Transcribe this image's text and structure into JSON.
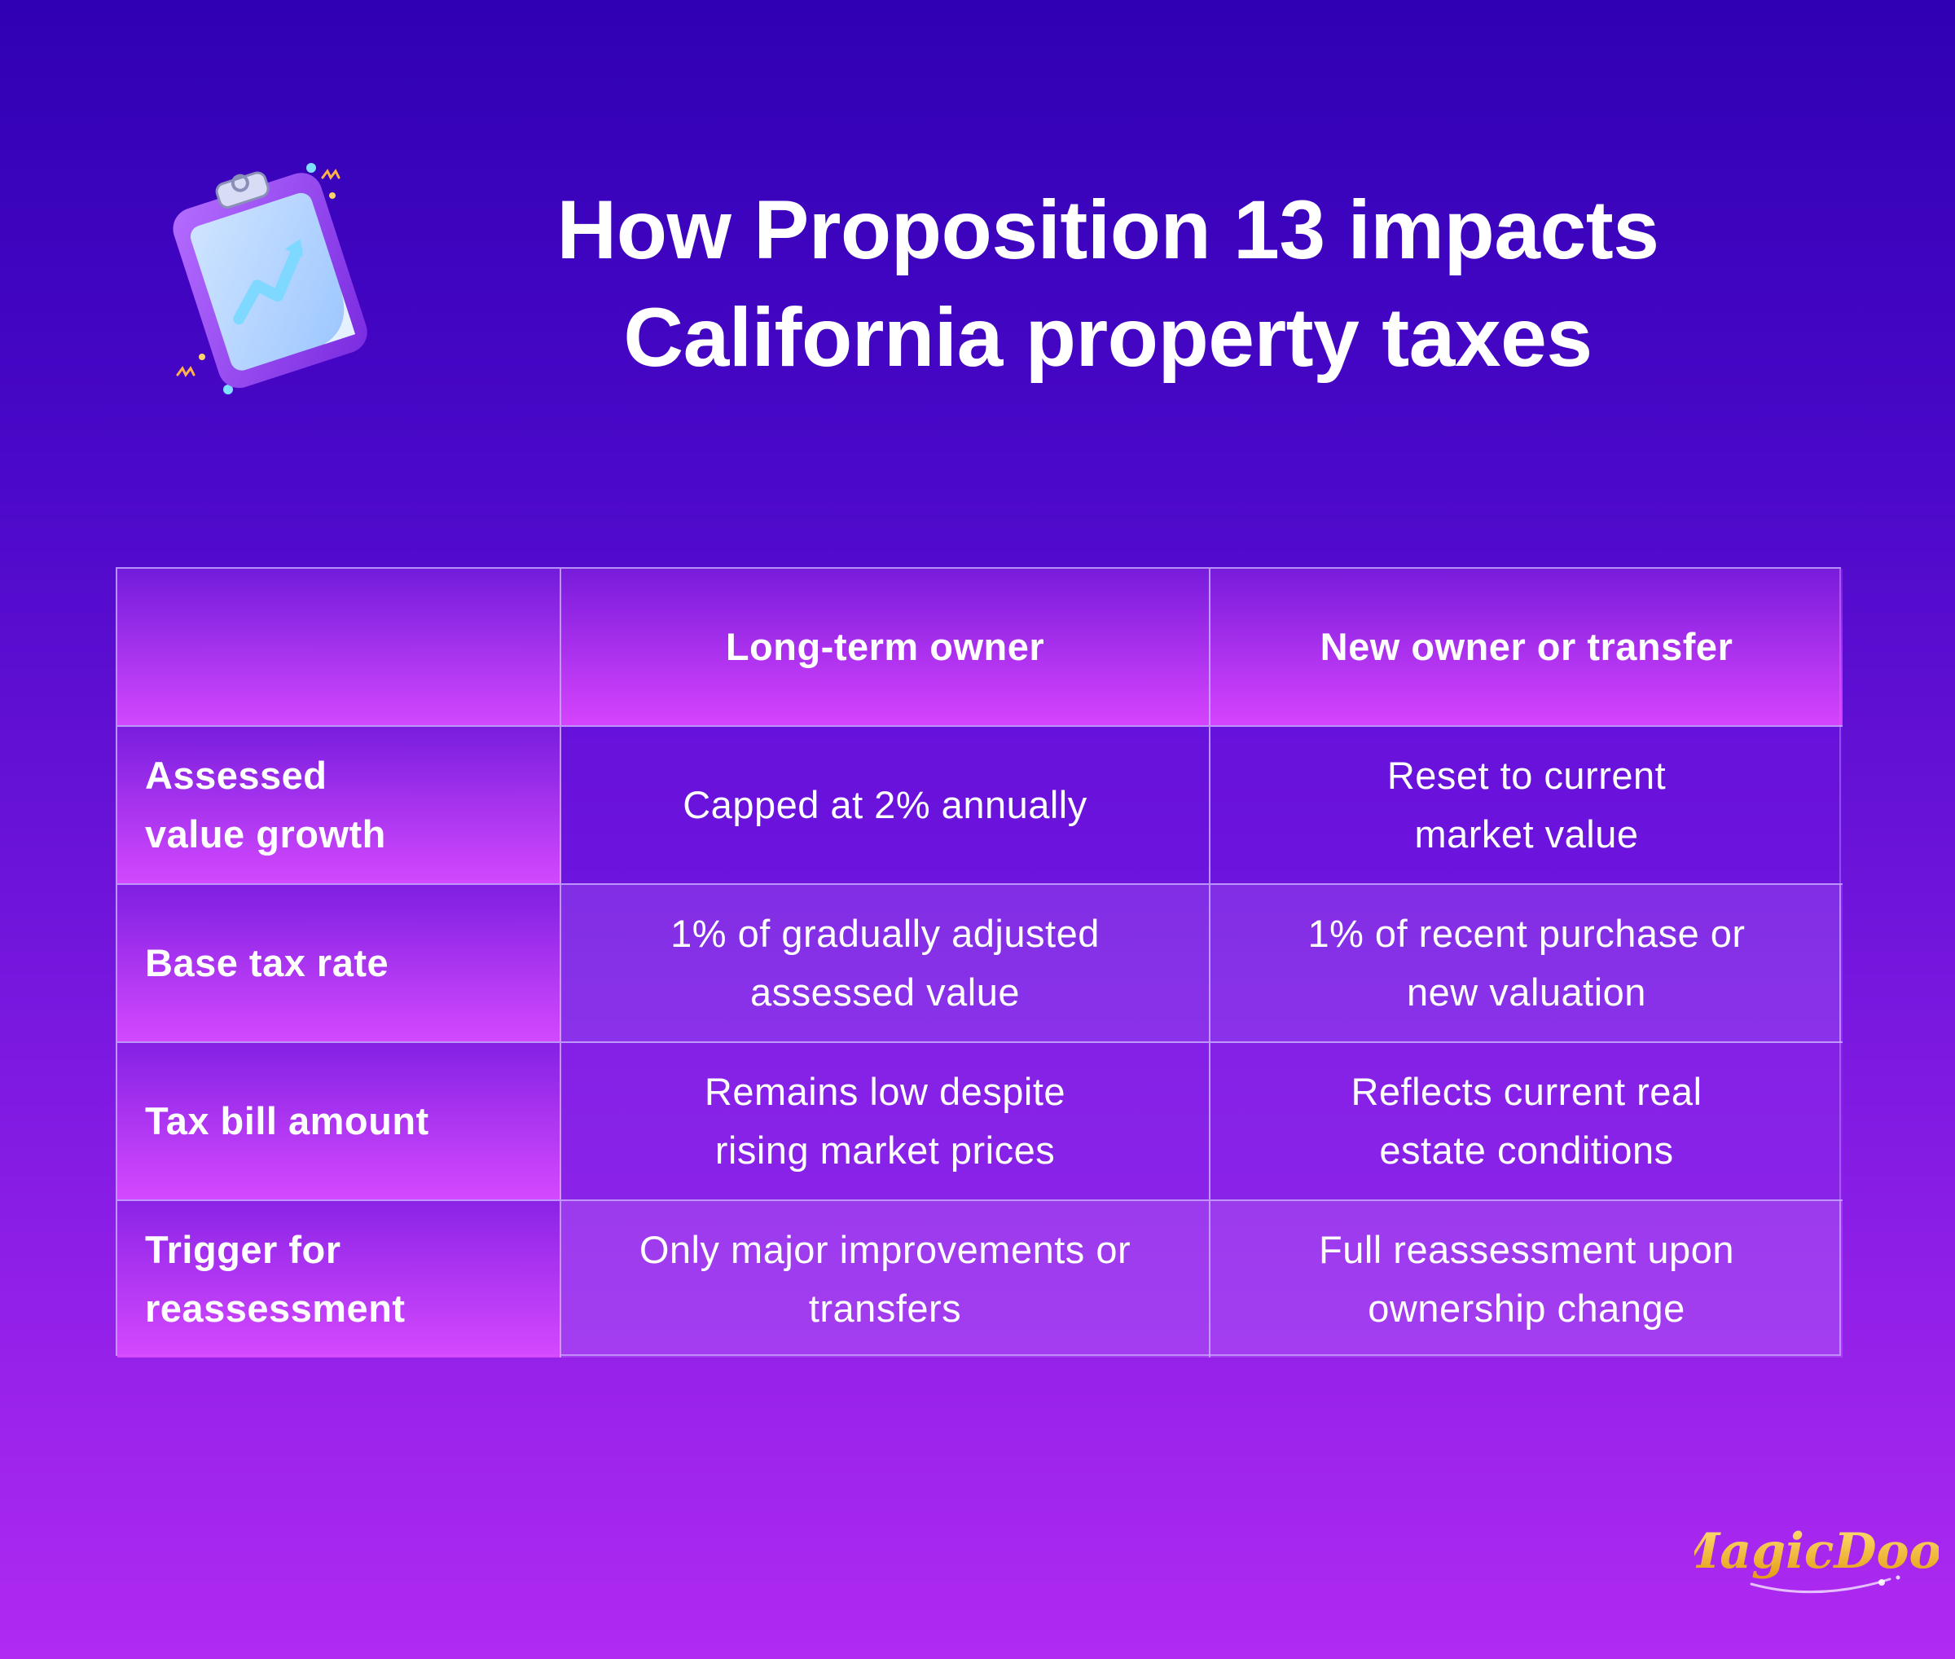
{
  "title": {
    "line1": "How Proposition 13 impacts",
    "line2": "California property taxes"
  },
  "table": {
    "columns": [
      "",
      "Long-term owner",
      "New owner or transfer"
    ],
    "rows": [
      {
        "label": "Assessed value growth",
        "long_term": "Capped at 2% annually",
        "new_owner": "Reset to current market value"
      },
      {
        "label": "Base tax rate",
        "long_term": "1% of gradually adjusted assessed value",
        "new_owner": "1% of recent purchase or new valuation"
      },
      {
        "label": "Tax bill amount",
        "long_term": "Remains low despite rising market prices",
        "new_owner": "Reflects current real estate conditions"
      },
      {
        "label": "Trigger for reassessment",
        "long_term": "Only major improvements or transfers",
        "new_owner": "Full reassessment upon ownership change"
      }
    ]
  },
  "logo": {
    "text": "MagicDoor",
    "icon": "magicdoor-logo"
  },
  "icons": {
    "header": "clipboard-chart-icon"
  },
  "colors": {
    "background_top": "#3000b4",
    "background_bottom": "#b02af2",
    "header_cell_accent": "#dc46ff",
    "border": "#c8aaff",
    "logo_gold": "#f5b521"
  }
}
